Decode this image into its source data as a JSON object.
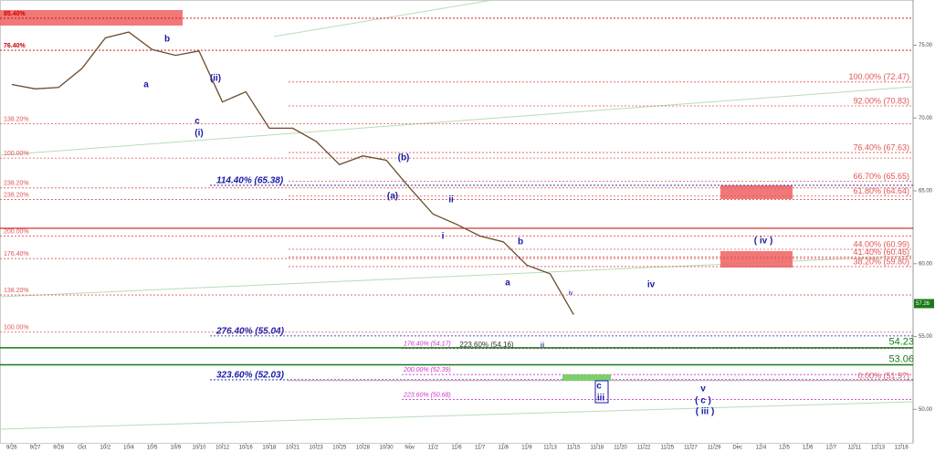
{
  "chart_data": {
    "type": "line",
    "categories": [
      "9/26",
      "9/27",
      "9/28",
      "Oct",
      "10/2",
      "10/4",
      "10/5",
      "10/9",
      "10/10",
      "10/12",
      "10/16",
      "10/18",
      "10/21",
      "10/23",
      "10/25",
      "10/28",
      "10/30",
      "Nov",
      "11/2",
      "11/6",
      "11/7",
      "11/8",
      "11/9",
      "11/13",
      "11/15",
      "11/18",
      "11/20",
      "11/22",
      "11/25",
      "11/27",
      "11/29",
      "Dec",
      "12/4",
      "12/5",
      "12/6",
      "12/7",
      "12/11",
      "12/13",
      "12/16"
    ],
    "series": [
      {
        "name": "Price",
        "color": "#6b4a2a",
        "values": [
          72.3,
          72.0,
          72.1,
          73.4,
          75.5,
          75.9,
          74.7,
          74.3,
          74.6,
          71.1,
          71.8,
          69.3,
          69.3,
          68.4,
          66.8,
          67.4,
          67.1,
          65.2,
          63.4,
          62.7,
          61.9,
          61.5,
          59.9,
          59.3,
          56.5,
          null,
          null,
          null,
          null,
          null,
          null,
          null,
          null,
          null,
          null,
          null,
          null,
          null,
          null
        ]
      }
    ],
    "last_price": 57.26,
    "ylim": [
      47.7,
      78.1
    ],
    "yticks": [
      {
        "value": 50,
        "label": "50.00"
      },
      {
        "value": 55,
        "label": "55.00"
      },
      {
        "value": 60,
        "label": "60.00"
      },
      {
        "value": 65,
        "label": "65.00"
      },
      {
        "value": 70,
        "label": "70.00"
      },
      {
        "value": 75,
        "label": "75.00"
      }
    ],
    "levels": [
      {
        "label": "100.00% (72.47)",
        "value": 72.47,
        "color": "#e05555",
        "align": "right"
      },
      {
        "label": "92.00% (70.83)",
        "value": 70.83,
        "color": "#e05555",
        "align": "right"
      },
      {
        "label": "76.40% (67.63)",
        "value": 67.63,
        "color": "#e05555",
        "align": "right"
      },
      {
        "label": "66.70% (65.65)",
        "value": 65.65,
        "color": "#e05555",
        "align": "right"
      },
      {
        "label": "61.80% (64.64)",
        "value": 64.64,
        "color": "#e05555",
        "align": "right"
      },
      {
        "label": "44.00% (60.99)",
        "value": 60.99,
        "color": "#e05555",
        "align": "right"
      },
      {
        "label": "41.40% (60.46)",
        "value": 60.46,
        "color": "#e05555",
        "align": "right"
      },
      {
        "label": "38.20% (59.80)",
        "value": 59.8,
        "color": "#e05555",
        "align": "right"
      },
      {
        "label": "0.00% (51.97)",
        "value": 51.97,
        "color": "#e05555",
        "align": "right"
      },
      {
        "label": "114.40% (65.38)",
        "value": 65.38,
        "color": "#1a1aa8",
        "align": "mid"
      },
      {
        "label": "276.40% (55.04)",
        "value": 55.04,
        "color": "#1a1aa8",
        "align": "mid"
      },
      {
        "label": "323.60% (52.03)",
        "value": 52.03,
        "color": "#1a1aa8",
        "align": "mid"
      },
      {
        "label": "176.40% (54.17)",
        "value": 54.17,
        "color": "#cc33cc",
        "align": "mag"
      },
      {
        "label": "200.00% (52.39)",
        "value": 52.39,
        "color": "#cc33cc",
        "align": "mag"
      },
      {
        "label": "223.60% (50.68)",
        "value": 50.68,
        "color": "#cc33cc",
        "align": "mag"
      },
      {
        "label": "85.40%",
        "value": 76.85,
        "color": "#cc0000",
        "align": "left"
      },
      {
        "label": "76.40%",
        "value": 74.65,
        "color": "#cc0000",
        "align": "left"
      },
      {
        "label": "138.20%",
        "value": 69.6,
        "color": "#e05555",
        "align": "left"
      },
      {
        "label": "100.00%",
        "value": 67.25,
        "color": "#e05555",
        "align": "left"
      },
      {
        "label": "238.20%",
        "value": 65.2,
        "color": "#e05555",
        "align": "left"
      },
      {
        "label": "238.20%",
        "value": 64.4,
        "color": "#e05555",
        "align": "left"
      },
      {
        "label": "200.00%",
        "value": 61.9,
        "color": "#e05555",
        "align": "left"
      },
      {
        "label": "176.40%",
        "value": 60.35,
        "color": "#e05555",
        "align": "left"
      },
      {
        "label": "138.20%",
        "value": 57.85,
        "color": "#e05555",
        "align": "left"
      },
      {
        "label": "100.00%",
        "value": 55.3,
        "color": "#e05555",
        "align": "left"
      }
    ],
    "support_lines": [
      {
        "value": 54.23,
        "color": "#1a7a1a"
      },
      {
        "value": 53.06,
        "color": "#1a7a1a"
      }
    ],
    "annotations": [
      "a",
      "b",
      "c",
      "(i)",
      "(ii)",
      "(a)",
      "(b)",
      "i",
      "ii",
      "a",
      "b",
      "iii",
      "iv",
      "( iv )",
      "iv",
      "v",
      "c",
      "iii",
      "v",
      "( c )",
      "( iii )",
      "223.60% (54.16)"
    ]
  }
}
